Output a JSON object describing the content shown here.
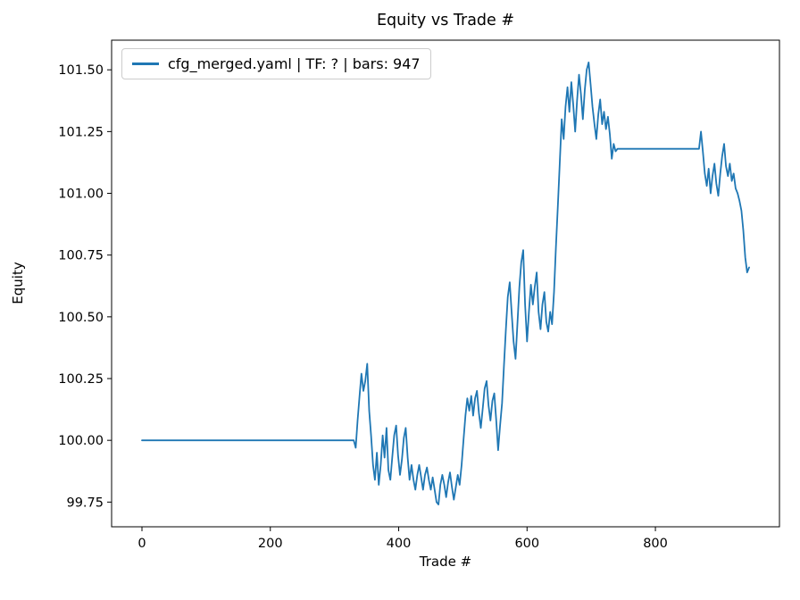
{
  "figure": {
    "title": "Equity vs Trade #",
    "xlabel": "Trade #",
    "ylabel": "Equity"
  },
  "legend": {
    "label": "cfg_merged.yaml | TF: ? | bars: 947"
  },
  "chart_data": {
    "type": "line",
    "title": "Equity vs Trade #",
    "xlabel": "Trade #",
    "ylabel": "Equity",
    "legend_entries": [
      "cfg_merged.yaml | TF: ? | bars: 947"
    ],
    "legend_position": "upper left",
    "grid": false,
    "line_color": "#1f77b4",
    "xlim": [
      -47.3,
      993.3
    ],
    "ylim": [
      99.65,
      101.62
    ],
    "xticks": [
      0,
      200,
      400,
      600,
      800
    ],
    "yticks": [
      99.75,
      100.0,
      100.25,
      100.5,
      100.75,
      101.0,
      101.25,
      101.5
    ],
    "series": [
      {
        "name": "cfg_merged.yaml | TF: ? | bars: 947",
        "points": [
          [
            0,
            100.0
          ],
          [
            330,
            100.0
          ],
          [
            333,
            99.97
          ],
          [
            336,
            100.08
          ],
          [
            339,
            100.18
          ],
          [
            342,
            100.27
          ],
          [
            345,
            100.2
          ],
          [
            348,
            100.24
          ],
          [
            351,
            100.31
          ],
          [
            354,
            100.12
          ],
          [
            357,
            100.02
          ],
          [
            360,
            99.9
          ],
          [
            363,
            99.84
          ],
          [
            366,
            99.95
          ],
          [
            369,
            99.82
          ],
          [
            372,
            99.9
          ],
          [
            375,
            100.02
          ],
          [
            378,
            99.93
          ],
          [
            381,
            100.05
          ],
          [
            384,
            99.88
          ],
          [
            387,
            99.84
          ],
          [
            390,
            99.93
          ],
          [
            393,
            100.02
          ],
          [
            396,
            100.06
          ],
          [
            399,
            99.94
          ],
          [
            402,
            99.86
          ],
          [
            405,
            99.92
          ],
          [
            408,
            100.01
          ],
          [
            411,
            100.05
          ],
          [
            414,
            99.93
          ],
          [
            417,
            99.84
          ],
          [
            420,
            99.9
          ],
          [
            423,
            99.84
          ],
          [
            426,
            99.8
          ],
          [
            429,
            99.86
          ],
          [
            432,
            99.9
          ],
          [
            435,
            99.85
          ],
          [
            438,
            99.8
          ],
          [
            441,
            99.86
          ],
          [
            444,
            99.89
          ],
          [
            447,
            99.84
          ],
          [
            450,
            99.8
          ],
          [
            453,
            99.85
          ],
          [
            456,
            99.8
          ],
          [
            459,
            99.75
          ],
          [
            462,
            99.74
          ],
          [
            465,
            99.82
          ],
          [
            468,
            99.86
          ],
          [
            471,
            99.82
          ],
          [
            474,
            99.77
          ],
          [
            477,
            99.83
          ],
          [
            480,
            99.87
          ],
          [
            483,
            99.81
          ],
          [
            486,
            99.76
          ],
          [
            489,
            99.81
          ],
          [
            492,
            99.86
          ],
          [
            495,
            99.82
          ],
          [
            498,
            99.9
          ],
          [
            501,
            100.0
          ],
          [
            504,
            100.1
          ],
          [
            507,
            100.17
          ],
          [
            510,
            100.12
          ],
          [
            513,
            100.18
          ],
          [
            516,
            100.1
          ],
          [
            519,
            100.17
          ],
          [
            522,
            100.2
          ],
          [
            525,
            100.11
          ],
          [
            528,
            100.05
          ],
          [
            531,
            100.13
          ],
          [
            534,
            100.21
          ],
          [
            537,
            100.24
          ],
          [
            540,
            100.14
          ],
          [
            543,
            100.08
          ],
          [
            546,
            100.16
          ],
          [
            549,
            100.19
          ],
          [
            552,
            100.08
          ],
          [
            555,
            99.96
          ],
          [
            558,
            100.06
          ],
          [
            561,
            100.15
          ],
          [
            564,
            100.3
          ],
          [
            567,
            100.45
          ],
          [
            570,
            100.58
          ],
          [
            573,
            100.64
          ],
          [
            576,
            100.52
          ],
          [
            579,
            100.4
          ],
          [
            582,
            100.33
          ],
          [
            585,
            100.47
          ],
          [
            588,
            100.62
          ],
          [
            591,
            100.72
          ],
          [
            594,
            100.77
          ],
          [
            597,
            100.55
          ],
          [
            600,
            100.4
          ],
          [
            603,
            100.52
          ],
          [
            606,
            100.63
          ],
          [
            609,
            100.55
          ],
          [
            612,
            100.62
          ],
          [
            615,
            100.68
          ],
          [
            618,
            100.52
          ],
          [
            621,
            100.45
          ],
          [
            624,
            100.55
          ],
          [
            627,
            100.6
          ],
          [
            630,
            100.48
          ],
          [
            633,
            100.44
          ],
          [
            636,
            100.52
          ],
          [
            639,
            100.47
          ],
          [
            642,
            100.6
          ],
          [
            645,
            100.78
          ],
          [
            648,
            100.95
          ],
          [
            651,
            101.12
          ],
          [
            654,
            101.3
          ],
          [
            657,
            101.22
          ],
          [
            660,
            101.35
          ],
          [
            663,
            101.43
          ],
          [
            666,
            101.33
          ],
          [
            669,
            101.45
          ],
          [
            672,
            101.36
          ],
          [
            675,
            101.25
          ],
          [
            678,
            101.38
          ],
          [
            681,
            101.48
          ],
          [
            684,
            101.4
          ],
          [
            687,
            101.3
          ],
          [
            690,
            101.42
          ],
          [
            693,
            101.5
          ],
          [
            696,
            101.53
          ],
          [
            699,
            101.44
          ],
          [
            702,
            101.35
          ],
          [
            705,
            101.28
          ],
          [
            708,
            101.22
          ],
          [
            711,
            101.32
          ],
          [
            714,
            101.38
          ],
          [
            717,
            101.28
          ],
          [
            720,
            101.33
          ],
          [
            723,
            101.26
          ],
          [
            726,
            101.31
          ],
          [
            729,
            101.24
          ],
          [
            732,
            101.14
          ],
          [
            735,
            101.2
          ],
          [
            738,
            101.17
          ],
          [
            741,
            101.18
          ],
          [
            868,
            101.18
          ],
          [
            871,
            101.25
          ],
          [
            874,
            101.17
          ],
          [
            877,
            101.08
          ],
          [
            880,
            101.03
          ],
          [
            883,
            101.1
          ],
          [
            886,
            101.0
          ],
          [
            889,
            101.07
          ],
          [
            892,
            101.12
          ],
          [
            895,
            101.04
          ],
          [
            898,
            100.99
          ],
          [
            901,
            101.08
          ],
          [
            904,
            101.15
          ],
          [
            907,
            101.2
          ],
          [
            910,
            101.11
          ],
          [
            913,
            101.07
          ],
          [
            916,
            101.12
          ],
          [
            919,
            101.05
          ],
          [
            922,
            101.08
          ],
          [
            925,
            101.02
          ],
          [
            928,
            101.0
          ],
          [
            931,
            100.97
          ],
          [
            934,
            100.93
          ],
          [
            937,
            100.85
          ],
          [
            940,
            100.74
          ],
          [
            943,
            100.68
          ],
          [
            946,
            100.7
          ]
        ]
      }
    ]
  }
}
